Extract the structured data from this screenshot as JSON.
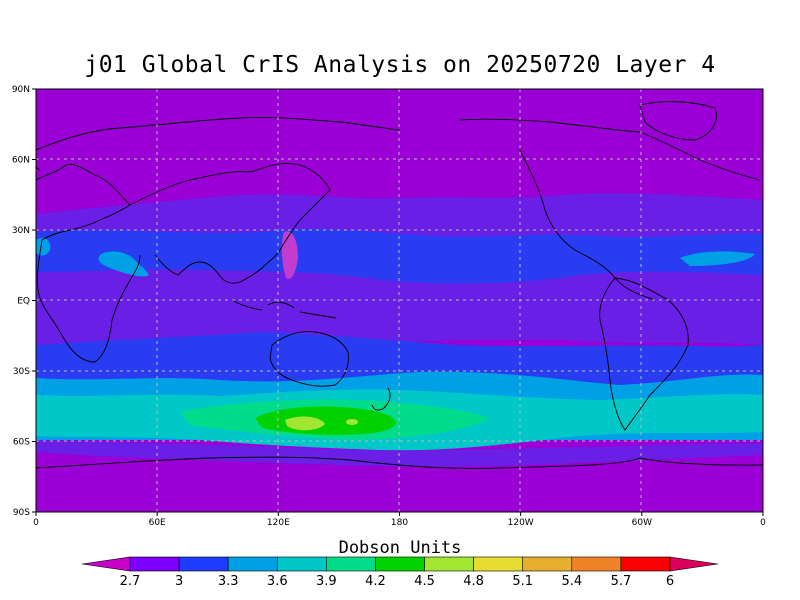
{
  "title": "j01 Global CrIS Analysis on 20250720 Layer 4",
  "lat_ticks": [
    "90N",
    "60N",
    "30N",
    "EQ",
    "30S",
    "60S",
    "90S"
  ],
  "lon_ticks": [
    "0",
    "60E",
    "120E",
    "180",
    "120W",
    "60W",
    "0"
  ],
  "colorbar": {
    "units_label": "Dobson Units",
    "levels": [
      "2.7",
      "3",
      "3.3",
      "3.6",
      "3.9",
      "4.2",
      "4.5",
      "4.8",
      "5.1",
      "5.4",
      "5.7",
      "6"
    ],
    "colors": [
      "#c800c8",
      "#7d00ff",
      "#1e3cff",
      "#00a0e6",
      "#00c8c8",
      "#00dc8c",
      "#00d200",
      "#a0e632",
      "#e6dc32",
      "#e6af2d",
      "#f08228",
      "#fa0000",
      "#dc005a"
    ]
  },
  "chart_data": {
    "type": "heatmap",
    "title": "j01 Global CrIS Analysis on 20250720 Layer 4",
    "units": "Dobson Units",
    "x_axis": {
      "range": [
        0,
        360
      ],
      "ticks": [
        "0",
        "60E",
        "120E",
        "180",
        "120W",
        "60W",
        "0"
      ]
    },
    "y_axis": {
      "range": [
        -90,
        90
      ],
      "ticks": [
        "90N",
        "60N",
        "30N",
        "EQ",
        "30S",
        "60S",
        "90S"
      ]
    },
    "contour_levels": [
      2.7,
      3,
      3.3,
      3.6,
      3.9,
      4.2,
      4.5,
      4.8,
      5.1,
      5.4,
      5.7,
      6
    ],
    "grid": true,
    "zonal_bands": [
      {
        "lat_from": 90,
        "lat_to": 45,
        "value": 2.7
      },
      {
        "lat_from": 45,
        "lat_to": 32,
        "value": 3.0
      },
      {
        "lat_from": 32,
        "lat_to": 12,
        "value": 3.3
      },
      {
        "lat_from": 12,
        "lat_to": -22,
        "value": 3.0
      },
      {
        "lat_from": -22,
        "lat_to": -35,
        "value": 3.3
      },
      {
        "lat_from": -35,
        "lat_to": -45,
        "value": 3.6
      },
      {
        "lat_from": -45,
        "lat_to": -58,
        "value": 3.9
      },
      {
        "lat_from": -58,
        "lat_to": -62,
        "value": 3.3
      },
      {
        "lat_from": -62,
        "lat_to": -72,
        "value": 3.0
      },
      {
        "lat_from": -72,
        "lat_to": -90,
        "value": 2.7
      }
    ],
    "features": [
      {
        "lon": 150,
        "lat": -53,
        "value": 4.5,
        "desc": "maximum south of Australia"
      },
      {
        "lon": 135,
        "lat": -50,
        "value": 4.2
      },
      {
        "lon": 48,
        "lat": 20,
        "value": 3.6,
        "desc": "Arabian peninsula"
      },
      {
        "lon": 10,
        "lat": 24,
        "value": 3.6,
        "desc": "North Africa"
      }
    ]
  }
}
